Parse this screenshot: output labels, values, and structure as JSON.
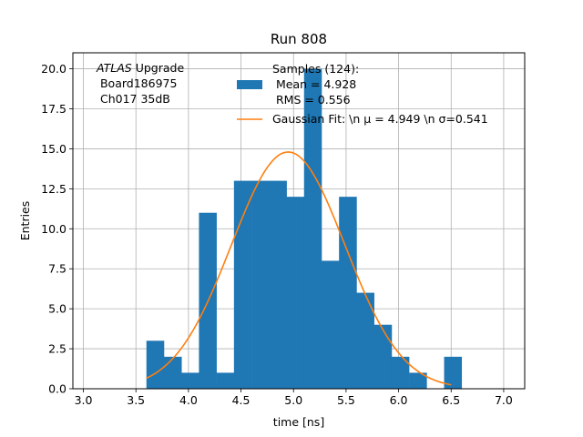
{
  "chart_data": {
    "type": "bar",
    "title": "Run 808",
    "xlabel": "time [ns]",
    "ylabel": "Entries",
    "xlim": [
      2.9,
      7.2
    ],
    "ylim": [
      0,
      21
    ],
    "xticks": [
      "3.0",
      "3.5",
      "4.0",
      "4.5",
      "5.0",
      "5.5",
      "6.0",
      "6.5",
      "7.0"
    ],
    "yticks": [
      "0.0",
      "2.5",
      "5.0",
      "7.5",
      "10.0",
      "12.5",
      "15.0",
      "17.5",
      "20.0"
    ],
    "grid": true,
    "legend_position": "top-right",
    "histogram": {
      "bin_width": 0.1667,
      "bin_starts": [
        3.6,
        3.767,
        3.933,
        4.1,
        4.267,
        4.433,
        4.6,
        4.767,
        4.933,
        5.1,
        5.267,
        5.433,
        5.6,
        5.767,
        5.933,
        6.1,
        6.267,
        6.433
      ],
      "counts": [
        3,
        2,
        1,
        11,
        1,
        13,
        13,
        13,
        12,
        20,
        8,
        12,
        6,
        4,
        2,
        1,
        0,
        2
      ],
      "color": "#1f77b4"
    },
    "series": [
      {
        "name": "Samples (124):\n Mean = 4.928\n RMS = 0.556",
        "kind": "histogram",
        "color": "#1f77b4"
      },
      {
        "name": "Gaussian Fit: \\n μ = 4.949 \\n σ=0.541",
        "kind": "line",
        "color": "#ff7f0e",
        "amplitude": 14.8,
        "mu": 4.949,
        "sigma": 0.541,
        "x_range": [
          3.6,
          6.5
        ]
      }
    ],
    "annotation": {
      "line1_italic": "ATLAS",
      "line1_rest": " Upgrade",
      "line2": " Board186975",
      "line3": " Ch017 35dB"
    }
  }
}
